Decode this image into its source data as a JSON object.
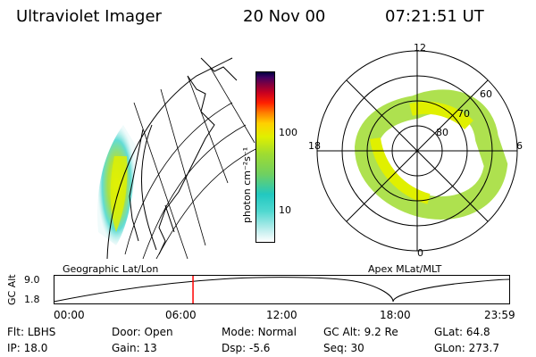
{
  "header": {
    "title": "Ultraviolet Imager",
    "date": "20 Nov 00",
    "time": "07:21:51 UT"
  },
  "colorbar": {
    "label": "photon cm⁻²s⁻¹",
    "ticks": [
      {
        "value": 100,
        "label": "100"
      },
      {
        "value": 10,
        "label": "10"
      }
    ],
    "scale": "log",
    "colors": [
      "#ffffff",
      "#c8f0f0",
      "#50d8d0",
      "#22c8c0",
      "#70d060",
      "#a0dc30",
      "#e0f000",
      "#ffd000",
      "#ff8000",
      "#ff2000",
      "#c80020",
      "#800040",
      "#400060",
      "#000040"
    ]
  },
  "left_panel": {
    "caption": "Geographic Lat/Lon"
  },
  "right_panel": {
    "caption": "Apex MLat/MLT",
    "mlt_labels": [
      "12",
      "18",
      "6",
      "0"
    ],
    "mlat_labels": [
      "60",
      "70",
      "80"
    ]
  },
  "altitude_strip": {
    "ylabel": "GC Alt",
    "yticks": [
      "9.0",
      "1.8"
    ],
    "xticks": [
      "00:00",
      "06:00",
      "12:00",
      "18:00",
      "23:59"
    ],
    "current_time_fraction": 0.305,
    "marker_color": "#ff0000"
  },
  "info": {
    "row1": [
      {
        "key": "Flt:",
        "val": "LBHS"
      },
      {
        "key": "Door:",
        "val": "Open"
      },
      {
        "key": "Mode:",
        "val": "Normal"
      },
      {
        "key": "GC Alt:",
        "val": "9.2 Re"
      },
      {
        "key": "GLat:",
        "val": "64.8"
      }
    ],
    "row2": [
      {
        "key": "IP:",
        "val": "18.0"
      },
      {
        "key": "Gain:",
        "val": "13"
      },
      {
        "key": "Dsp:",
        "val": "-5.6"
      },
      {
        "key": "Seq:",
        "val": "30"
      },
      {
        "key": "GLon:",
        "val": "273.7"
      }
    ]
  }
}
